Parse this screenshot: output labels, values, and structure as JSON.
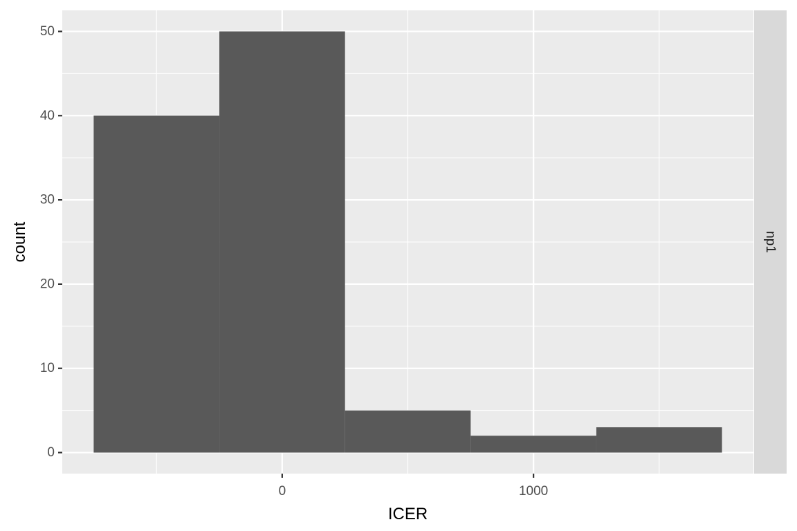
{
  "chart_data": {
    "type": "bar",
    "subtype": "histogram",
    "facet_label": "np1",
    "xlabel": "ICER",
    "ylabel": "count",
    "bins": [
      {
        "x0": -750,
        "x1": -250,
        "count": 40
      },
      {
        "x0": -250,
        "x1": 250,
        "count": 50
      },
      {
        "x0": 250,
        "x1": 750,
        "count": 5
      },
      {
        "x0": 750,
        "x1": 1250,
        "count": 2
      },
      {
        "x0": 1250,
        "x1": 1750,
        "count": 3
      }
    ],
    "xlim": [
      -875,
      1875
    ],
    "ylim": [
      -2.5,
      52.5
    ],
    "xticks": [
      {
        "value": 0,
        "label": "0"
      },
      {
        "value": 1000,
        "label": "1000"
      }
    ],
    "xminor": [
      -500,
      500,
      1500
    ],
    "yticks": [
      {
        "value": 0,
        "label": "0"
      },
      {
        "value": 10,
        "label": "10"
      },
      {
        "value": 20,
        "label": "20"
      },
      {
        "value": 30,
        "label": "30"
      },
      {
        "value": 40,
        "label": "40"
      },
      {
        "value": 50,
        "label": "50"
      }
    ],
    "yminor": [
      5,
      15,
      25,
      35,
      45
    ],
    "grid": true,
    "colors": {
      "panel_background": "#ebebeb",
      "grid": "#ffffff",
      "bar_fill": "#595959",
      "strip_background": "#d9d9d9",
      "tick": "#333333"
    }
  }
}
